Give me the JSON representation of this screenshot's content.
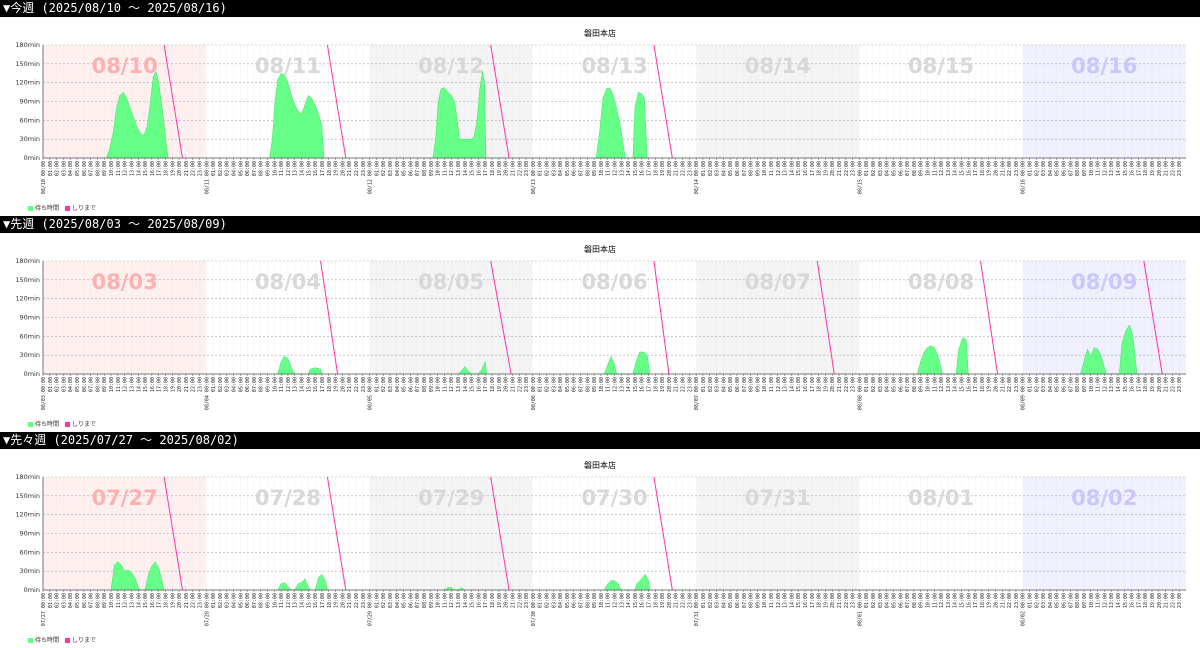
{
  "colors": {
    "wait": "#66ff88",
    "wait_stroke": "#44dd66",
    "until": "#ff33aa",
    "sun_bg": "#fff0f0",
    "sun_text": "#ffb0b0",
    "sat_bg": "#f0f0ff",
    "sat_text": "#c8c8ff",
    "alt_bg": "#f4f4f4",
    "day_text": "#d8d8d8"
  },
  "legend": {
    "wait_label": "待ち時間",
    "until_label": "しりまで"
  },
  "chart_data": [
    {
      "type": "area",
      "header": "▼今週 (2025/08/10 〜 2025/08/16)",
      "title": "磐田本店",
      "ylim": [
        0,
        180
      ],
      "yticks": [
        "0min",
        "30min",
        "60min",
        "90min",
        "120min",
        "150min",
        "180min"
      ],
      "days": [
        "08/10",
        "08/11",
        "08/12",
        "08/13",
        "08/14",
        "08/15",
        "08/16"
      ],
      "day_tick_labels": [
        "08/10 00:00",
        "08/11 00:00",
        "08/12 00:00",
        "08/13 00:00",
        "08/14 00:00",
        "08/15 00:00",
        "08/16 00:00"
      ],
      "hour_labels": [
        "01:00",
        "02:00",
        "03:00",
        "04:00",
        "05:00",
        "06:00",
        "07:00",
        "08:00",
        "09:00",
        "10:00",
        "11:00",
        "12:00",
        "13:00",
        "14:00",
        "15:00",
        "16:00",
        "17:00",
        "18:00",
        "19:00",
        "20:00",
        "21:00",
        "22:00",
        "23:00"
      ],
      "wait_series": [
        {
          "day": 0,
          "points": [
            [
              9.3,
              0
            ],
            [
              9.8,
              15
            ],
            [
              10.3,
              40
            ],
            [
              10.8,
              80
            ],
            [
              11.3,
              100
            ],
            [
              11.8,
              105
            ],
            [
              12.3,
              95
            ],
            [
              12.8,
              80
            ],
            [
              13.3,
              65
            ],
            [
              13.8,
              50
            ],
            [
              14.3,
              40
            ],
            [
              14.8,
              35
            ],
            [
              15.3,
              50
            ],
            [
              15.8,
              90
            ],
            [
              16.2,
              130
            ],
            [
              16.6,
              138
            ],
            [
              17,
              120
            ],
            [
              17.4,
              90
            ],
            [
              17.8,
              55
            ],
            [
              18.2,
              15
            ],
            [
              18.4,
              0
            ]
          ]
        },
        {
          "day": 1,
          "points": [
            [
              9.3,
              0
            ],
            [
              9.7,
              30
            ],
            [
              10.1,
              90
            ],
            [
              10.5,
              125
            ],
            [
              11,
              135
            ],
            [
              11.5,
              132
            ],
            [
              12,
              120
            ],
            [
              12.5,
              100
            ],
            [
              13,
              85
            ],
            [
              13.5,
              75
            ],
            [
              14,
              70
            ],
            [
              14.5,
              85
            ],
            [
              15,
              100
            ],
            [
              15.5,
              95
            ],
            [
              16,
              85
            ],
            [
              16.5,
              70
            ],
            [
              17,
              50
            ],
            [
              17.3,
              0
            ]
          ]
        },
        {
          "day": 2,
          "points": [
            [
              9.3,
              0
            ],
            [
              9.7,
              30
            ],
            [
              10.1,
              90
            ],
            [
              10.5,
              110
            ],
            [
              11,
              112
            ],
            [
              11.5,
              105
            ],
            [
              12,
              100
            ],
            [
              12.5,
              90
            ],
            [
              13,
              50
            ],
            [
              13.2,
              30
            ],
            [
              14,
              30
            ],
            [
              14.6,
              30
            ],
            [
              15,
              30
            ],
            [
              15.4,
              35
            ],
            [
              15.8,
              60
            ],
            [
              16.2,
              110
            ],
            [
              16.6,
              138
            ],
            [
              16.9,
              120
            ],
            [
              17.1,
              0
            ]
          ]
        },
        {
          "day": 3,
          "points": [
            [
              9.3,
              0
            ],
            [
              9.8,
              40
            ],
            [
              10.3,
              95
            ],
            [
              10.8,
              110
            ],
            [
              11.3,
              112
            ],
            [
              11.8,
              100
            ],
            [
              12.3,
              80
            ],
            [
              12.8,
              55
            ],
            [
              13.3,
              20
            ],
            [
              13.6,
              0
            ],
            [
              14.7,
              0
            ],
            [
              15,
              80
            ],
            [
              15.5,
              105
            ],
            [
              16,
              102
            ],
            [
              16.4,
              95
            ],
            [
              16.8,
              0
            ]
          ]
        }
      ],
      "until_lines": [
        {
          "day": 0,
          "from_hour": 17.8,
          "to_hour": 20.5
        },
        {
          "day": 1,
          "from_hour": 17.8,
          "to_hour": 20.5
        },
        {
          "day": 2,
          "from_hour": 17.8,
          "to_hour": 20.5
        },
        {
          "day": 3,
          "from_hour": 17.8,
          "to_hour": 20.5
        }
      ]
    },
    {
      "type": "area",
      "header": "▼先週 (2025/08/03 〜 2025/08/09)",
      "title": "磐田本店",
      "ylim": [
        0,
        180
      ],
      "yticks": [
        "0min",
        "30min",
        "60min",
        "90min",
        "120min",
        "150min",
        "180min"
      ],
      "days": [
        "08/03",
        "08/04",
        "08/05",
        "08/06",
        "08/07",
        "08/08",
        "08/09"
      ],
      "day_tick_labels": [
        "08/03 00:00",
        "08/04 00:00",
        "08/05 00:00",
        "08/06 00:00",
        "08/07 00:00",
        "08/08 00:00",
        "08/09 00:00"
      ],
      "hour_labels": [
        "01:00",
        "02:00",
        "03:00",
        "04:00",
        "05:00",
        "06:00",
        "07:00",
        "08:00",
        "09:00",
        "10:00",
        "11:00",
        "12:00",
        "13:00",
        "14:00",
        "15:00",
        "16:00",
        "17:00",
        "18:00",
        "19:00",
        "20:00",
        "21:00",
        "22:00",
        "23:00"
      ],
      "wait_series": [
        {
          "day": 1,
          "points": [
            [
              10.5,
              0
            ],
            [
              11,
              20
            ],
            [
              11.5,
              28
            ],
            [
              12,
              25
            ],
            [
              12.5,
              10
            ],
            [
              13,
              0
            ],
            [
              15,
              0
            ],
            [
              15.3,
              8
            ],
            [
              16,
              10
            ],
            [
              16.8,
              8
            ],
            [
              17,
              0
            ]
          ]
        },
        {
          "day": 2,
          "points": [
            [
              13,
              0
            ],
            [
              13.5,
              5
            ],
            [
              14,
              12
            ],
            [
              14.5,
              5
            ],
            [
              15,
              0
            ],
            [
              16,
              0
            ],
            [
              16.5,
              8
            ],
            [
              17,
              20
            ],
            [
              17.2,
              0
            ]
          ]
        },
        {
          "day": 3,
          "points": [
            [
              10.5,
              0
            ],
            [
              11,
              15
            ],
            [
              11.5,
              28
            ],
            [
              12,
              15
            ],
            [
              12.3,
              0
            ],
            [
              14.7,
              0
            ],
            [
              15.2,
              20
            ],
            [
              15.7,
              35
            ],
            [
              16.3,
              35
            ],
            [
              16.8,
              30
            ],
            [
              17.2,
              0
            ]
          ]
        },
        {
          "day": 5,
          "points": [
            [
              8.5,
              0
            ],
            [
              9,
              20
            ],
            [
              9.5,
              35
            ],
            [
              10,
              42
            ],
            [
              10.5,
              45
            ],
            [
              11,
              42
            ],
            [
              11.5,
              30
            ],
            [
              12,
              10
            ],
            [
              12.2,
              0
            ],
            [
              14.2,
              0
            ],
            [
              14.6,
              40
            ],
            [
              15.2,
              58
            ],
            [
              15.7,
              55
            ],
            [
              16,
              0
            ]
          ]
        },
        {
          "day": 6,
          "points": [
            [
              8.5,
              0
            ],
            [
              9,
              20
            ],
            [
              9.5,
              40
            ],
            [
              10,
              28
            ],
            [
              10.5,
              42
            ],
            [
              11,
              40
            ],
            [
              11.5,
              30
            ],
            [
              12,
              10
            ],
            [
              12.3,
              0
            ],
            [
              14.2,
              0
            ],
            [
              14.6,
              50
            ],
            [
              15.2,
              70
            ],
            [
              15.7,
              78
            ],
            [
              16.2,
              60
            ],
            [
              16.5,
              30
            ],
            [
              16.8,
              0
            ]
          ]
        }
      ],
      "until_lines": [
        {
          "day": 1,
          "from_hour": 16.8,
          "to_hour": 19.3
        },
        {
          "day": 2,
          "from_hour": 17.8,
          "to_hour": 20.8
        },
        {
          "day": 3,
          "from_hour": 17.8,
          "to_hour": 20.0
        },
        {
          "day": 4,
          "from_hour": 17.8,
          "to_hour": 20.3
        },
        {
          "day": 5,
          "from_hour": 17.8,
          "to_hour": 20.3
        },
        {
          "day": 6,
          "from_hour": 17.8,
          "to_hour": 20.5
        }
      ]
    },
    {
      "type": "area",
      "header": "▼先々週 (2025/07/27 〜 2025/08/02)",
      "title": "磐田本店",
      "ylim": [
        0,
        180
      ],
      "yticks": [
        "0min",
        "30min",
        "60min",
        "90min",
        "120min",
        "150min",
        "180min"
      ],
      "days": [
        "07/27",
        "07/28",
        "07/29",
        "07/30",
        "07/31",
        "08/01",
        "08/02"
      ],
      "day_tick_labels": [
        "07/27 00:00",
        "07/28 00:00",
        "07/29 00:00",
        "07/30 00:00",
        "07/31 00:00",
        "08/01 00:00",
        "08/02 00:00"
      ],
      "hour_labels": [
        "01:00",
        "02:00",
        "03:00",
        "04:00",
        "05:00",
        "06:00",
        "07:00",
        "08:00",
        "09:00",
        "10:00",
        "11:00",
        "12:00",
        "13:00",
        "14:00",
        "15:00",
        "16:00",
        "17:00",
        "18:00",
        "19:00",
        "20:00",
        "21:00",
        "22:00",
        "23:00"
      ],
      "wait_series": [
        {
          "day": 0,
          "points": [
            [
              10,
              0
            ],
            [
              10.5,
              40
            ],
            [
              11,
              45
            ],
            [
              11.5,
              40
            ],
            [
              12,
              30
            ],
            [
              12.5,
              32
            ],
            [
              13,
              28
            ],
            [
              13.5,
              20
            ],
            [
              14,
              5
            ],
            [
              14.3,
              0
            ],
            [
              15,
              0
            ],
            [
              15.5,
              25
            ],
            [
              16,
              38
            ],
            [
              16.5,
              45
            ],
            [
              17,
              35
            ],
            [
              17.5,
              15
            ],
            [
              17.8,
              0
            ]
          ]
        },
        {
          "day": 1,
          "points": [
            [
              10.5,
              0
            ],
            [
              11,
              10
            ],
            [
              11.5,
              12
            ],
            [
              12,
              5
            ],
            [
              12.5,
              0
            ],
            [
              13,
              0
            ],
            [
              13.5,
              10
            ],
            [
              14,
              12
            ],
            [
              14.5,
              18
            ],
            [
              15,
              5
            ],
            [
              15.3,
              0
            ],
            [
              16,
              0
            ],
            [
              16.5,
              20
            ],
            [
              17,
              25
            ],
            [
              17.5,
              15
            ],
            [
              17.8,
              0
            ]
          ]
        },
        {
          "day": 2,
          "points": [
            [
              11,
              0
            ],
            [
              11.5,
              4
            ],
            [
              12,
              4
            ],
            [
              12.5,
              0
            ],
            [
              13,
              0
            ],
            [
              13.5,
              4
            ],
            [
              14,
              0
            ]
          ]
        },
        {
          "day": 3,
          "points": [
            [
              10.5,
              0
            ],
            [
              11,
              10
            ],
            [
              11.5,
              15
            ],
            [
              12,
              15
            ],
            [
              12.5,
              10
            ],
            [
              13,
              0
            ],
            [
              15,
              0
            ],
            [
              15.3,
              10
            ],
            [
              16,
              18
            ],
            [
              16.5,
              25
            ],
            [
              17,
              15
            ],
            [
              17.2,
              0
            ]
          ]
        }
      ],
      "until_lines": [
        {
          "day": 0,
          "from_hour": 17.8,
          "to_hour": 20.5
        },
        {
          "day": 1,
          "from_hour": 17.8,
          "to_hour": 20.5
        },
        {
          "day": 2,
          "from_hour": 17.8,
          "to_hour": 20.5
        },
        {
          "day": 3,
          "from_hour": 17.8,
          "to_hour": 20.5
        }
      ]
    }
  ]
}
